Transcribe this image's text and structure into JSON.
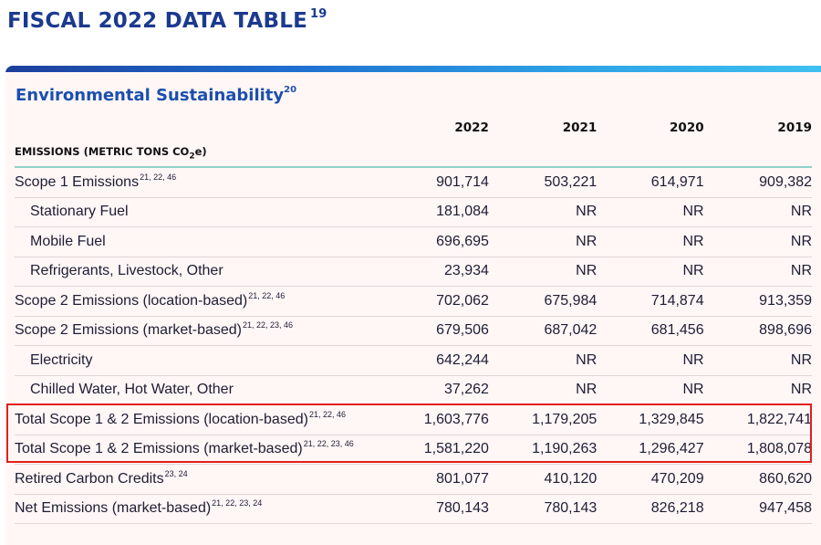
{
  "document": {
    "title": "FISCAL 2022 DATA TABLE",
    "title_ref": "19"
  },
  "section": {
    "title": "Environmental Sustainability",
    "title_ref": "20"
  },
  "columns": [
    "2022",
    "2021",
    "2020",
    "2019"
  ],
  "category": {
    "label_prefix": "EMISSIONS (METRIC TONS CO",
    "label_sub": "2",
    "label_suffix": "e)"
  },
  "rows": [
    {
      "label": "Scope 1 Emissions",
      "refs": "21, 22, 46",
      "indent": false,
      "values": [
        "901,714",
        "503,221",
        "614,971",
        "909,382"
      ]
    },
    {
      "label": "Stationary Fuel",
      "refs": "",
      "indent": true,
      "values": [
        "181,084",
        "NR",
        "NR",
        "NR"
      ]
    },
    {
      "label": "Mobile Fuel",
      "refs": "",
      "indent": true,
      "values": [
        "696,695",
        "NR",
        "NR",
        "NR"
      ]
    },
    {
      "label": "Refrigerants, Livestock, Other",
      "refs": "",
      "indent": true,
      "values": [
        "23,934",
        "NR",
        "NR",
        "NR"
      ]
    },
    {
      "label": "Scope 2 Emissions (location-based)",
      "refs": "21, 22, 46",
      "indent": false,
      "values": [
        "702,062",
        "675,984",
        "714,874",
        "913,359"
      ]
    },
    {
      "label": "Scope 2 Emissions (market-based)",
      "refs": "21, 22, 23, 46",
      "indent": false,
      "values": [
        "679,506",
        "687,042",
        "681,456",
        "898,696"
      ]
    },
    {
      "label": "Electricity",
      "refs": "",
      "indent": true,
      "values": [
        "642,244",
        "NR",
        "NR",
        "NR"
      ]
    },
    {
      "label": "Chilled Water, Hot Water, Other",
      "refs": "",
      "indent": true,
      "values": [
        "37,262",
        "NR",
        "NR",
        "NR"
      ]
    },
    {
      "label": "Total Scope 1 & 2 Emissions (location-based)",
      "refs": "21, 22, 46",
      "indent": false,
      "values": [
        "1,603,776",
        "1,179,205",
        "1,329,845",
        "1,822,741"
      ]
    },
    {
      "label": "Total Scope 1 & 2 Emissions (market-based)",
      "refs": "21, 22, 23, 46",
      "indent": false,
      "values": [
        "1,581,220",
        "1,190,263",
        "1,296,427",
        "1,808,078"
      ]
    },
    {
      "label": "Retired Carbon Credits",
      "refs": "23, 24",
      "indent": false,
      "values": [
        "801,077",
        "410,120",
        "470,209",
        "860,620"
      ]
    },
    {
      "label": "Net Emissions (market-based)",
      "refs": "21, 22, 23, 24",
      "indent": false,
      "values": [
        "780,143",
        "780,143",
        "826,218",
        "947,458"
      ]
    }
  ],
  "colors": {
    "title": "#1b3a8f",
    "section_title": "#1b4fae",
    "panel_bg": "#fff6f6",
    "category_rule": "#8fd1c9",
    "highlight_box": "#e0201e"
  }
}
